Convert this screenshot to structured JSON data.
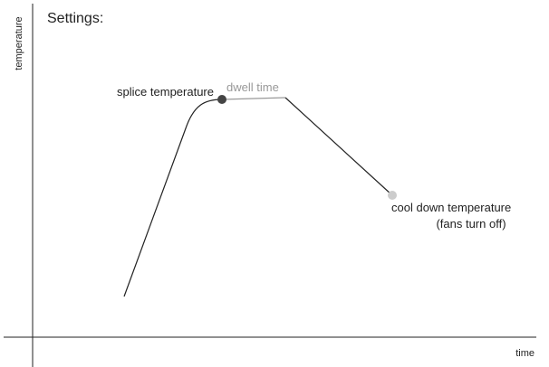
{
  "title": "Settings:",
  "axes": {
    "y_label": "temperature",
    "x_label": "time"
  },
  "points": [
    {
      "label": "splice temperature"
    },
    {
      "label": "dwell time"
    },
    {
      "label": "cool down temperature",
      "note": "(fans turn off)"
    }
  ]
}
